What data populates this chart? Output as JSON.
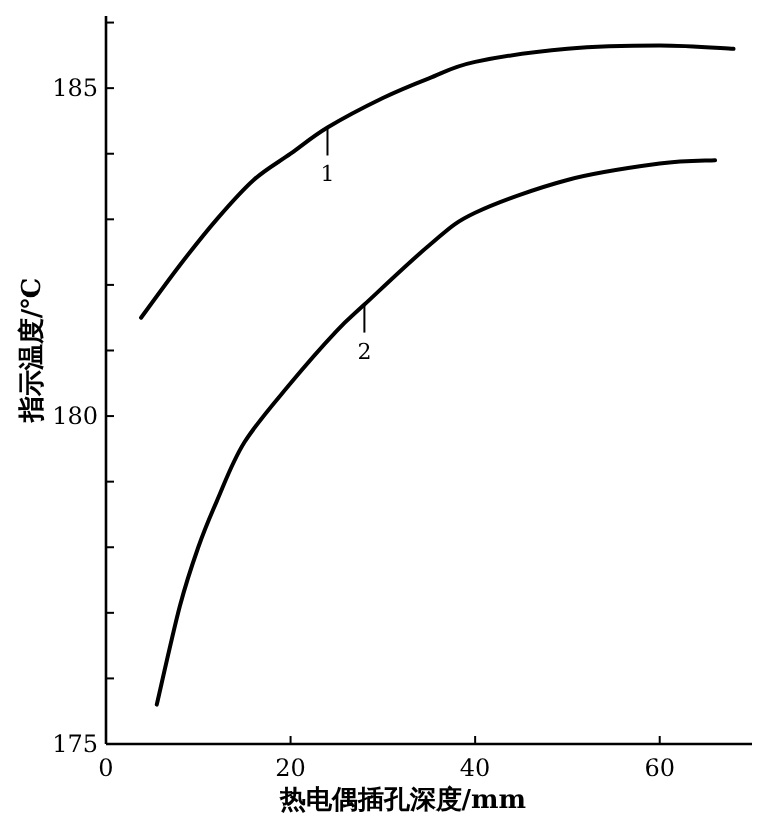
{
  "chart_data": {
    "type": "line",
    "xlabel": "热电偶插孔深度/mm",
    "ylabel": "指示温度/℃",
    "xlim": [
      0,
      70
    ],
    "ylim": [
      175,
      186.1
    ],
    "xticks": [
      0,
      20,
      40,
      60
    ],
    "yticks": [
      175,
      {
        "value": 176,
        "label": null
      },
      {
        "value": 177,
        "label": null
      },
      {
        "value": 178,
        "label": null
      },
      {
        "value": 179,
        "label": null
      },
      180,
      {
        "value": 181,
        "label": null
      },
      {
        "value": 182,
        "label": null
      },
      {
        "value": 183,
        "label": null
      },
      {
        "value": 184,
        "label": null
      },
      185,
      {
        "value": 186,
        "label": null
      }
    ],
    "series": [
      {
        "color": "#000000",
        "x": [
          3.8,
          8,
          12,
          16,
          20,
          24,
          30,
          35,
          40,
          50,
          60,
          68
        ],
        "values": [
          181.5,
          182.3,
          183.0,
          183.6,
          184.0,
          184.4,
          184.85,
          185.15,
          185.4,
          185.6,
          185.65,
          185.6
        ]
      },
      {
        "color": "#000000",
        "x": [
          5.5,
          8,
          10,
          12,
          15,
          20,
          25,
          28,
          35,
          40,
          50,
          60,
          66
        ],
        "values": [
          175.6,
          177.1,
          178.0,
          178.7,
          179.6,
          180.5,
          181.3,
          181.7,
          182.6,
          183.1,
          183.6,
          183.85,
          183.9
        ]
      }
    ],
    "annotations": [
      {
        "text": "1",
        "x": 24,
        "y": 184.4
      },
      {
        "text": "2",
        "x": 28,
        "y": 181.7
      }
    ],
    "grid": false,
    "marker": "none",
    "line_style": "solid"
  }
}
